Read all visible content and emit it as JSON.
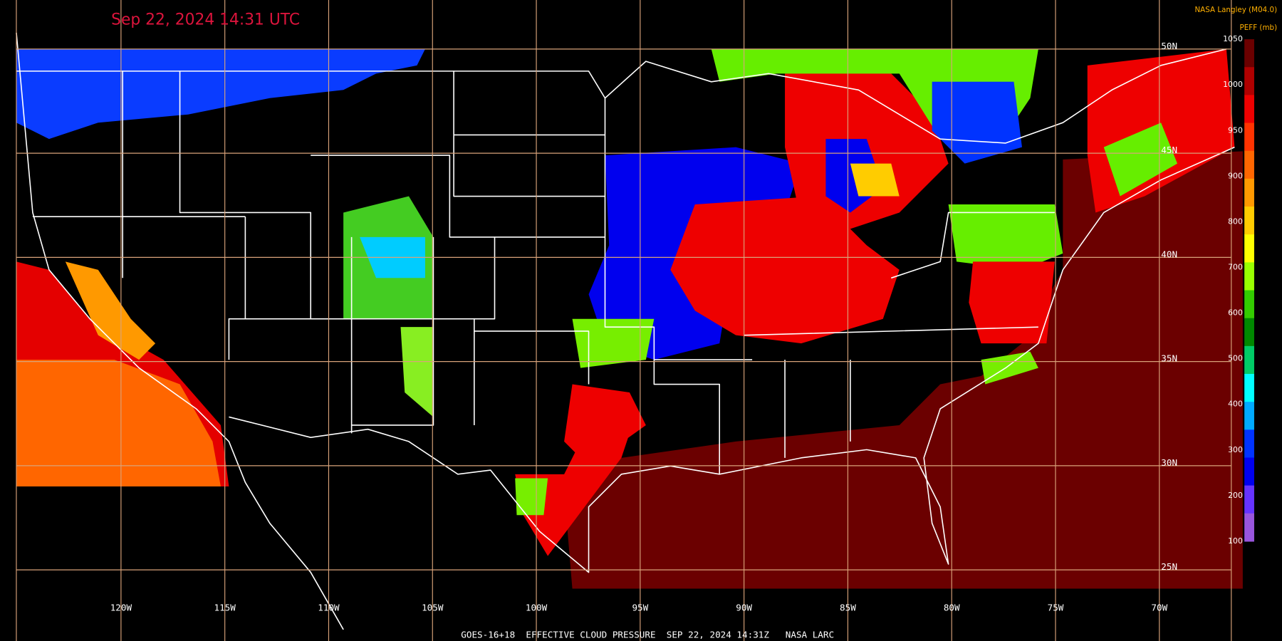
{
  "header": {
    "timestamp": "Sep 22, 2024 14:31 UTC",
    "credit": "NASA Langley (M04.0)"
  },
  "footer": "GOES-16+18  EFFECTIVE CLOUD PRESSURE  SEP 22, 2024 14:31Z   NASA LARC",
  "grid": {
    "longitudes": [
      "120W",
      "115W",
      "110W",
      "105W",
      "100W",
      "95W",
      "90W",
      "85W",
      "80W",
      "75W",
      "70W"
    ],
    "latitudes": [
      "50N",
      "45N",
      "40N",
      "35N",
      "30N",
      "25N"
    ],
    "color": "#d9a37a"
  },
  "colorbar": {
    "title": "PEFF (mb)",
    "labels": [
      "1050",
      "1000",
      "950",
      "900",
      "800",
      "700",
      "600",
      "500",
      "400",
      "300",
      "200",
      "100"
    ],
    "colors": [
      "#6b0000",
      "#b00000",
      "#ee0000",
      "#ff3300",
      "#ff6600",
      "#ff9900",
      "#ffcc00",
      "#ffff00",
      "#99ff00",
      "#33cc00",
      "#008800",
      "#00cc66",
      "#00ffff",
      "#00aaff",
      "#0033ff",
      "#0000ee",
      "#6633ff",
      "#9955dd"
    ]
  }
}
